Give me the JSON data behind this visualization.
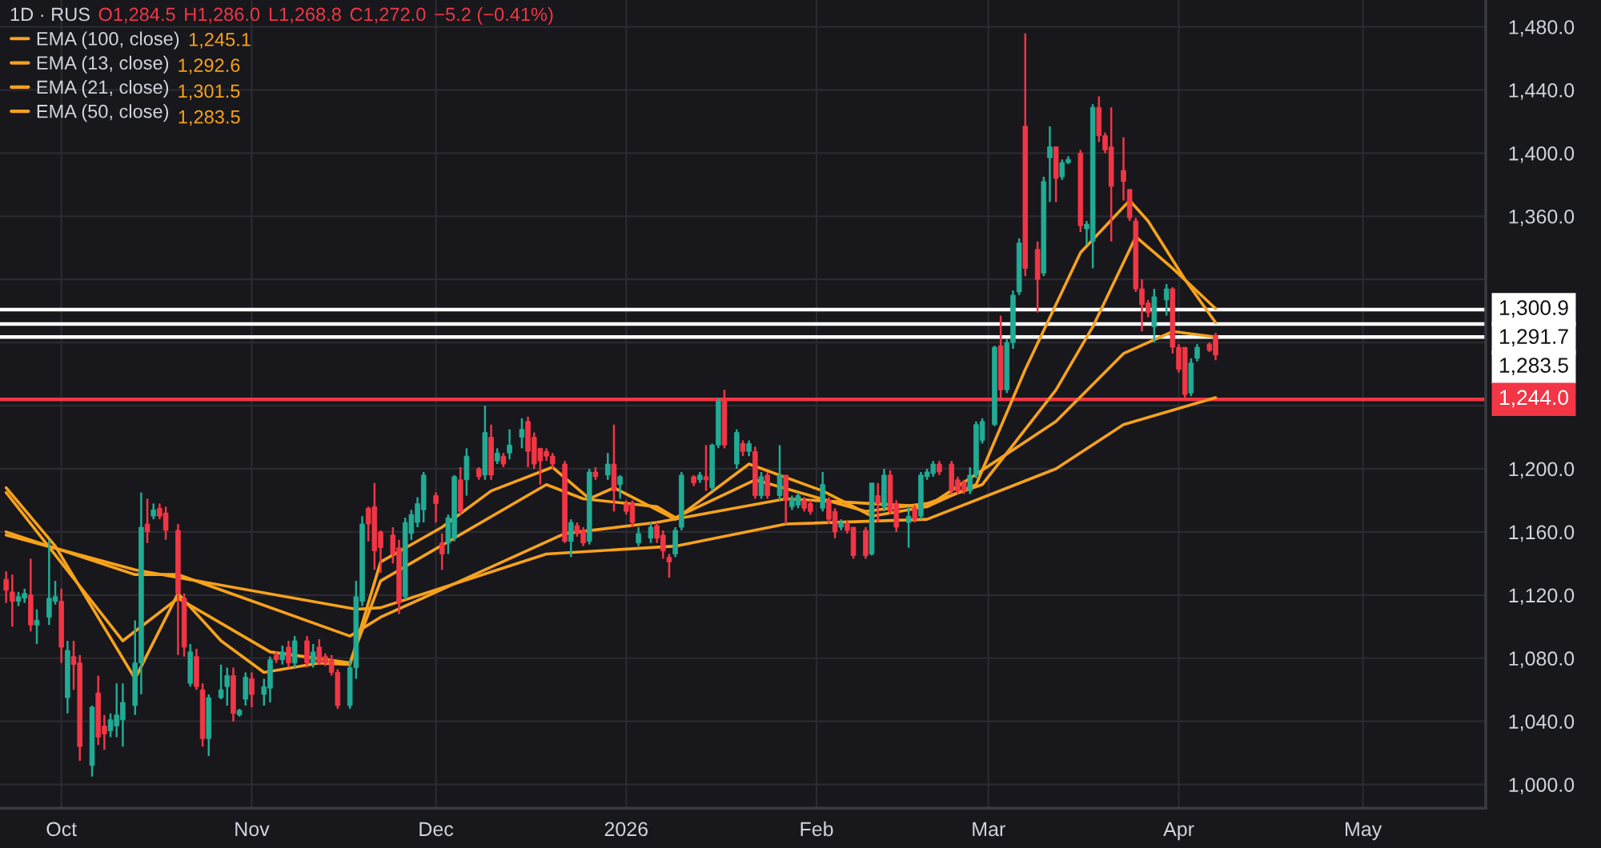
{
  "chart_data": {
    "type": "candlestick",
    "x": [
      "2025-09-22",
      "2025-09-23",
      "2025-09-24",
      "2025-09-25",
      "2025-09-26",
      "2025-09-27",
      "2025-09-29",
      "2025-09-30",
      "2025-10-01",
      "2025-10-02",
      "2025-10-03",
      "2025-10-04",
      "2025-10-06",
      "2025-10-07",
      "2025-10-08",
      "2025-10-09",
      "2025-10-10",
      "2025-10-11",
      "2025-10-13",
      "2025-10-14",
      "2025-10-15",
      "2025-10-16",
      "2025-10-17",
      "2025-10-18",
      "2025-10-20",
      "2025-10-21",
      "2025-10-22",
      "2025-10-23",
      "2025-10-24",
      "2025-10-25",
      "2025-10-27",
      "2025-10-28",
      "2025-10-29",
      "2025-10-30",
      "2025-10-31",
      "2025-11-01",
      "2025-11-03",
      "2025-11-04",
      "2025-11-05",
      "2025-11-06",
      "2025-11-07",
      "2025-11-08",
      "2025-11-10",
      "2025-11-11",
      "2025-11-12",
      "2025-11-13",
      "2025-11-14",
      "2025-11-15",
      "2025-11-17",
      "2025-11-18",
      "2025-11-19",
      "2025-11-20",
      "2025-11-21",
      "2025-11-22",
      "2025-11-24",
      "2025-11-25",
      "2025-11-26",
      "2025-11-27",
      "2025-11-28",
      "2025-11-29",
      "2025-12-01",
      "2025-12-02",
      "2025-12-03",
      "2025-12-04",
      "2025-12-05",
      "2025-12-06",
      "2025-12-08",
      "2025-12-09",
      "2025-12-10",
      "2025-12-11",
      "2025-12-12",
      "2025-12-13",
      "2025-12-15",
      "2025-12-16",
      "2025-12-17",
      "2025-12-18",
      "2025-12-19",
      "2025-12-20",
      "2025-12-22",
      "2025-12-23",
      "2025-12-24",
      "2025-12-25",
      "2025-12-26",
      "2025-12-27",
      "2025-12-29",
      "2025-12-30",
      "2025-12-31",
      "2026-01-01",
      "2026-01-02",
      "2026-01-03",
      "2026-01-05",
      "2026-01-06",
      "2026-01-07",
      "2026-01-08",
      "2026-01-09",
      "2026-01-10",
      "2026-01-12",
      "2026-01-13",
      "2026-01-14",
      "2026-01-15",
      "2026-01-16",
      "2026-01-17",
      "2026-01-19",
      "2026-01-20",
      "2026-01-21",
      "2026-01-22",
      "2026-01-23",
      "2026-01-24",
      "2026-01-26",
      "2026-01-27",
      "2026-01-28",
      "2026-01-29",
      "2026-01-30",
      "2026-01-31",
      "2026-02-02",
      "2026-02-03",
      "2026-02-04",
      "2026-02-05",
      "2026-02-06",
      "2026-02-07",
      "2026-02-09",
      "2026-02-10",
      "2026-02-11",
      "2026-02-12",
      "2026-02-13",
      "2026-02-14",
      "2026-02-16",
      "2026-02-17",
      "2026-02-18",
      "2026-02-19",
      "2026-02-20",
      "2026-02-21",
      "2026-02-23",
      "2026-02-24",
      "2026-02-25",
      "2026-02-26",
      "2026-02-27",
      "2026-02-28",
      "2026-03-02",
      "2026-03-03",
      "2026-03-04",
      "2026-03-05",
      "2026-03-06",
      "2026-03-07",
      "2026-03-09",
      "2026-03-10",
      "2026-03-11",
      "2026-03-12",
      "2026-03-13",
      "2026-03-14",
      "2026-03-16",
      "2026-03-17",
      "2026-03-18",
      "2026-03-19",
      "2026-03-20",
      "2026-03-21",
      "2026-03-23",
      "2026-03-24",
      "2026-03-25",
      "2026-03-26",
      "2026-03-27",
      "2026-03-28",
      "2026-03-30",
      "2026-03-31",
      "2026-04-01",
      "2026-04-02",
      "2026-04-03",
      "2026-04-04",
      "2026-04-06",
      "2026-04-07"
    ],
    "ohlc": [
      [
        1130,
        1135,
        1115,
        1123
      ],
      [
        1122,
        1133,
        1100,
        1116
      ],
      [
        1116,
        1122,
        1113,
        1119
      ],
      [
        1118,
        1124,
        1115,
        1121
      ],
      [
        1120,
        1143,
        1097,
        1101
      ],
      [
        1101,
        1111,
        1089,
        1104
      ],
      [
        1106,
        1155,
        1101,
        1118
      ],
      [
        1116,
        1129,
        1114,
        1119
      ],
      [
        1116,
        1124,
        1077,
        1087
      ],
      [
        1055,
        1091,
        1045,
        1085
      ],
      [
        1081,
        1091,
        1060,
        1076
      ],
      [
        1077,
        1082,
        1015,
        1024
      ],
      [
        1012,
        1050,
        1005,
        1049
      ],
      [
        1058,
        1069,
        1025,
        1030
      ],
      [
        1037,
        1044,
        1022,
        1032
      ],
      [
        1034,
        1045,
        1030,
        1041
      ],
      [
        1037,
        1064,
        1030,
        1044
      ],
      [
        1041,
        1064,
        1024,
        1052
      ],
      [
        1050,
        1104,
        1044,
        1077
      ],
      [
        1077,
        1185,
        1057,
        1163
      ],
      [
        1165,
        1181,
        1153,
        1160
      ],
      [
        1170,
        1178,
        1168,
        1174
      ],
      [
        1175,
        1178,
        1168,
        1170
      ],
      [
        1172,
        1176,
        1155,
        1161
      ],
      [
        1161,
        1165,
        1082,
        1121
      ],
      [
        1118,
        1121,
        1081,
        1087
      ],
      [
        1064,
        1089,
        1062,
        1084
      ],
      [
        1081,
        1086,
        1060,
        1062
      ],
      [
        1060,
        1064,
        1024,
        1029
      ],
      [
        1029,
        1057,
        1018,
        1055
      ],
      [
        1055,
        1076,
        1054,
        1060
      ],
      [
        1062,
        1074,
        1050,
        1069
      ],
      [
        1069,
        1074,
        1040,
        1045
      ],
      [
        1044,
        1048,
        1043,
        1047
      ],
      [
        1054,
        1071,
        1050,
        1068
      ],
      [
        1067,
        1071,
        1049,
        1057
      ],
      [
        1057,
        1067,
        1050,
        1062
      ],
      [
        1061,
        1081,
        1052,
        1079
      ],
      [
        1082,
        1084,
        1077,
        1079
      ],
      [
        1079,
        1088,
        1076,
        1084
      ],
      [
        1087,
        1091,
        1074,
        1077
      ],
      [
        1077,
        1094,
        1074,
        1091
      ],
      [
        1091,
        1094,
        1074,
        1077
      ],
      [
        1077,
        1089,
        1074,
        1084
      ],
      [
        1087,
        1092,
        1076,
        1077
      ],
      [
        1081,
        1083,
        1075,
        1077
      ],
      [
        1079,
        1082,
        1069,
        1071
      ],
      [
        1071,
        1073,
        1048,
        1050
      ],
      [
        1050,
        1079,
        1048,
        1074
      ],
      [
        1074,
        1129,
        1067,
        1119
      ],
      [
        1116,
        1170,
        1113,
        1165
      ],
      [
        1175,
        1176,
        1154,
        1165
      ],
      [
        1176,
        1191,
        1136,
        1148
      ],
      [
        1160,
        1161,
        1134,
        1150
      ],
      [
        1158,
        1163,
        1140,
        1146
      ],
      [
        1150,
        1155,
        1108,
        1115
      ],
      [
        1119,
        1169,
        1117,
        1166
      ],
      [
        1159,
        1174,
        1155,
        1171
      ],
      [
        1166,
        1182,
        1163,
        1178
      ],
      [
        1174,
        1198,
        1166,
        1196
      ],
      [
        1183,
        1185,
        1166,
        1178
      ],
      [
        1153,
        1159,
        1136,
        1146
      ],
      [
        1153,
        1171,
        1146,
        1169
      ],
      [
        1156,
        1196,
        1154,
        1195
      ],
      [
        1193,
        1201,
        1171,
        1173
      ],
      [
        1193,
        1213,
        1183,
        1208
      ],
      [
        1200,
        1201,
        1193,
        1195
      ],
      [
        1196,
        1240,
        1193,
        1223
      ],
      [
        1220,
        1228,
        1193,
        1196
      ],
      [
        1205,
        1213,
        1203,
        1210
      ],
      [
        1208,
        1210,
        1201,
        1203
      ],
      [
        1210,
        1225,
        1206,
        1215
      ],
      [
        1220,
        1232,
        1213,
        1225
      ],
      [
        1230,
        1233,
        1201,
        1211
      ],
      [
        1220,
        1223,
        1200,
        1203
      ],
      [
        1213,
        1213,
        1190,
        1205
      ],
      [
        1211,
        1213,
        1205,
        1208
      ],
      [
        1208,
        1210,
        1200,
        1203
      ],
      [
        1203,
        1205,
        1153,
        1154
      ],
      [
        1154,
        1168,
        1144,
        1166
      ],
      [
        1164,
        1166,
        1157,
        1159
      ],
      [
        1161,
        1163,
        1151,
        1153
      ],
      [
        1154,
        1200,
        1152,
        1198
      ],
      [
        1198,
        1201,
        1193,
        1195
      ],
      [
        1196,
        1210,
        1193,
        1203
      ],
      [
        1203,
        1228,
        1173,
        1186
      ],
      [
        1190,
        1196,
        1181,
        1195
      ],
      [
        1178,
        1180,
        1171,
        1173
      ],
      [
        1178,
        1180,
        1163,
        1166
      ],
      [
        1153,
        1163,
        1151,
        1159
      ],
      [
        1156,
        1166,
        1153,
        1163
      ],
      [
        1164,
        1166,
        1153,
        1156
      ],
      [
        1158,
        1161,
        1143,
        1148
      ],
      [
        1144,
        1146,
        1131,
        1141
      ],
      [
        1146,
        1163,
        1144,
        1161
      ],
      [
        1163,
        1198,
        1161,
        1196
      ],
      [
        1195,
        1196,
        1189,
        1191
      ],
      [
        1193,
        1198,
        1191,
        1196
      ],
      [
        1195,
        1215,
        1186,
        1193
      ],
      [
        1188,
        1216,
        1186,
        1215
      ],
      [
        1215,
        1245,
        1213,
        1243
      ],
      [
        1243,
        1250,
        1213,
        1215
      ],
      [
        1203,
        1225,
        1200,
        1223
      ],
      [
        1216,
        1218,
        1208,
        1211
      ],
      [
        1211,
        1218,
        1208,
        1216
      ],
      [
        1211,
        1214,
        1181,
        1183
      ],
      [
        1183,
        1198,
        1181,
        1195
      ],
      [
        1196,
        1198,
        1181,
        1183
      ],
      [
        1183,
        1215,
        1180,
        1196
      ],
      [
        1196,
        1196,
        1165,
        1180
      ],
      [
        1176,
        1183,
        1174,
        1181
      ],
      [
        1177,
        1185,
        1175,
        1183
      ],
      [
        1180,
        1182,
        1173,
        1175
      ],
      [
        1178,
        1180,
        1171,
        1173
      ],
      [
        1175,
        1198,
        1173,
        1190
      ],
      [
        1180,
        1182,
        1165,
        1168
      ],
      [
        1173,
        1175,
        1156,
        1160
      ],
      [
        1163,
        1168,
        1161,
        1166
      ],
      [
        1165,
        1167,
        1159,
        1161
      ],
      [
        1163,
        1163,
        1143,
        1145
      ],
      [
        1161,
        1163,
        1143,
        1145
      ],
      [
        1146,
        1191,
        1145,
        1191
      ],
      [
        1183,
        1191,
        1166,
        1178
      ],
      [
        1176,
        1200,
        1173,
        1196
      ],
      [
        1196,
        1199,
        1171,
        1173
      ],
      [
        1178,
        1180,
        1160,
        1163
      ],
      [
        1166,
        1176,
        1150,
        1170
      ],
      [
        1175,
        1177,
        1166,
        1168
      ],
      [
        1170,
        1198,
        1168,
        1196
      ],
      [
        1195,
        1200,
        1193,
        1198
      ],
      [
        1197,
        1205,
        1195,
        1203
      ],
      [
        1203,
        1205,
        1196,
        1198
      ],
      [
        1203,
        1205,
        1184,
        1186
      ],
      [
        1193,
        1195,
        1184,
        1186
      ],
      [
        1191,
        1193,
        1184,
        1186
      ],
      [
        1186,
        1201,
        1184,
        1196
      ],
      [
        1196,
        1230,
        1194,
        1228
      ],
      [
        1218,
        1232,
        1216,
        1230
      ],
      [
        1228,
        1278,
        1227,
        1277
      ],
      [
        1278,
        1297,
        1243,
        1250
      ],
      [
        1250,
        1282,
        1248,
        1280
      ],
      [
        1280,
        1313,
        1276,
        1310
      ],
      [
        1312,
        1346,
        1310,
        1343
      ],
      [
        1417,
        1476,
        1322,
        1327
      ],
      [
        1339,
        1344,
        1299,
        1320
      ],
      [
        1324,
        1385,
        1322,
        1382
      ],
      [
        1397,
        1417,
        1369,
        1404
      ],
      [
        1404,
        1404,
        1369,
        1384
      ],
      [
        1385,
        1396,
        1383,
        1394
      ],
      [
        1394,
        1398,
        1393,
        1396
      ],
      [
        1400,
        1402,
        1350,
        1354
      ],
      [
        1352,
        1357,
        1342,
        1355
      ],
      [
        1344,
        1431,
        1327,
        1429
      ],
      [
        1429,
        1436,
        1407,
        1411
      ],
      [
        1411,
        1413,
        1400,
        1402
      ],
      [
        1404,
        1429,
        1344,
        1379
      ],
      [
        1389,
        1410,
        1370,
        1382
      ],
      [
        1377,
        1377,
        1357,
        1359
      ],
      [
        1357,
        1359,
        1312,
        1314
      ],
      [
        1314,
        1320,
        1287,
        1304
      ],
      [
        1305,
        1307,
        1296,
        1299
      ],
      [
        1290,
        1314,
        1280,
        1309
      ],
      [
        1307,
        1317,
        1297,
        1314
      ],
      [
        1314,
        1315,
        1273,
        1277
      ],
      [
        1277,
        1279,
        1261,
        1263
      ],
      [
        1277,
        1277,
        1245,
        1247
      ],
      [
        1248,
        1270,
        1246,
        1267
      ],
      [
        1270,
        1279,
        1268,
        1277
      ],
      [
        1279,
        1280,
        1274,
        1275
      ],
      [
        1284.5,
        1286.0,
        1268.8,
        1272.0
      ]
    ],
    "colors": [
      "#f23645",
      "#f23645",
      "#22ab94",
      "#22ab94",
      "#f23645",
      "#22ab94",
      "#22ab94",
      "#22ab94",
      "#f23645",
      "#22ab94",
      "#f23645",
      "#f23645",
      "#22ab94",
      "#f23645",
      "#f23645",
      "#22ab94",
      "#22ab94",
      "#22ab94",
      "#22ab94",
      "#22ab94",
      "#f23645",
      "#22ab94",
      "#f23645",
      "#f23645",
      "#f23645",
      "#f23645",
      "#22ab94",
      "#f23645",
      "#f23645",
      "#22ab94",
      "#22ab94",
      "#22ab94",
      "#f23645",
      "#22ab94",
      "#22ab94",
      "#f23645",
      "#22ab94",
      "#22ab94",
      "#f23645",
      "#22ab94",
      "#f23645",
      "#22ab94",
      "#f23645",
      "#22ab94",
      "#f23645",
      "#f23645",
      "#f23645",
      "#f23645",
      "#22ab94",
      "#22ab94",
      "#22ab94",
      "#f23645",
      "#f23645",
      "#f23645",
      "#f23645",
      "#f23645",
      "#22ab94",
      "#22ab94",
      "#22ab94",
      "#22ab94",
      "#f23645",
      "#f23645",
      "#22ab94",
      "#22ab94",
      "#f23645",
      "#22ab94",
      "#f23645",
      "#22ab94",
      "#f23645",
      "#22ab94",
      "#f23645",
      "#22ab94",
      "#22ab94",
      "#f23645",
      "#f23645",
      "#f23645",
      "#f23645",
      "#f23645",
      "#f23645",
      "#22ab94",
      "#f23645",
      "#f23645",
      "#22ab94",
      "#f23645",
      "#22ab94",
      "#f23645",
      "#22ab94",
      "#f23645",
      "#f23645",
      "#22ab94",
      "#22ab94",
      "#f23645",
      "#f23645",
      "#f23645",
      "#22ab94",
      "#22ab94",
      "#f23645",
      "#22ab94",
      "#f23645",
      "#22ab94",
      "#22ab94",
      "#f23645",
      "#22ab94",
      "#f23645",
      "#22ab94",
      "#f23645",
      "#22ab94",
      "#f23645",
      "#22ab94",
      "#f23645",
      "#22ab94",
      "#22ab94",
      "#f23645",
      "#f23645",
      "#22ab94",
      "#f23645",
      "#f23645",
      "#22ab94",
      "#f23645",
      "#f23645",
      "#f23645",
      "#22ab94",
      "#f23645",
      "#22ab94",
      "#f23645",
      "#f23645",
      "#22ab94",
      "#f23645",
      "#22ab94",
      "#22ab94",
      "#22ab94",
      "#f23645",
      "#f23645",
      "#f23645",
      "#f23645",
      "#22ab94",
      "#22ab94",
      "#22ab94",
      "#22ab94",
      "#f23645",
      "#22ab94",
      "#22ab94",
      "#22ab94",
      "#f23645",
      "#f23645",
      "#22ab94",
      "#22ab94",
      "#f23645",
      "#22ab94",
      "#22ab94",
      "#f23645",
      "#22ab94",
      "#22ab94",
      "#f23645",
      "#f23645",
      "#f23645",
      "#f23645",
      "#f23645",
      "#f23645",
      "#f23645",
      "#f23645",
      "#22ab94",
      "#22ab94",
      "#f23645",
      "#f23645",
      "#f23645",
      "#22ab94",
      "#22ab94",
      "#f23645",
      "#f23645"
    ],
    "series": [
      {
        "name": "EMA (100, close)",
        "type": "line",
        "color": "#f7a21b",
        "x": [
          "2025-09-22",
          "2025-10-13",
          "2025-11-18",
          "2025-11-22",
          "2025-12-19",
          "2026-01-09",
          "2026-01-27",
          "2026-02-19",
          "2026-03-12",
          "2026-03-23",
          "2026-04-07"
        ],
        "values": [
          1158,
          1136,
          1111,
          1112,
          1146,
          1151,
          1165,
          1168,
          1200,
          1228,
          1245.1
        ]
      },
      {
        "name": "EMA (13, close)",
        "type": "line",
        "color": "#f7a21b",
        "x": [
          "2025-09-22",
          "2025-09-30",
          "2025-10-13",
          "2025-10-20",
          "2025-10-27",
          "2025-11-03",
          "2025-11-12",
          "2025-11-17",
          "2025-11-22",
          "2025-12-02",
          "2025-12-10",
          "2025-12-20",
          "2025-12-26",
          "2025-12-30",
          "2026-01-09",
          "2026-01-21",
          "2026-02-02",
          "2026-02-10",
          "2026-02-19",
          "2026-02-27",
          "2026-03-07",
          "2026-03-16",
          "2026-03-24",
          "2026-03-27",
          "2026-04-02",
          "2026-04-07"
        ],
        "values": [
          1188,
          1151,
          1067,
          1121,
          1091,
          1071,
          1077,
          1076,
          1141,
          1163,
          1186,
          1201,
          1181,
          1188,
          1168,
          1203,
          1186,
          1170,
          1176,
          1190,
          1263,
          1337,
          1370,
          1357,
          1320,
          1292.6
        ]
      },
      {
        "name": "EMA (21, close)",
        "type": "line",
        "color": "#f7a21b",
        "x": [
          "2025-09-22",
          "2025-10-11",
          "2025-10-20",
          "2025-11-04",
          "2025-11-17",
          "2025-11-22",
          "2025-12-19",
          "2025-12-25",
          "2026-01-06",
          "2026-01-09",
          "2026-01-22",
          "2026-02-09",
          "2026-02-19",
          "2026-02-28",
          "2026-03-05",
          "2026-03-12",
          "2026-03-18",
          "2026-03-25",
          "2026-03-31",
          "2026-04-07"
        ],
        "values": [
          1185,
          1091,
          1118,
          1084,
          1077,
          1129,
          1190,
          1181,
          1176,
          1169,
          1193,
          1173,
          1178,
          1190,
          1215,
          1250,
          1290,
          1347,
          1327,
          1301.5
        ]
      },
      {
        "name": "EMA (50, close)",
        "type": "line",
        "color": "#f7a21b",
        "x": [
          "2025-09-22",
          "2025-10-13",
          "2025-10-20",
          "2025-11-17",
          "2025-11-22",
          "2025-12-22",
          "2026-01-06",
          "2026-01-27",
          "2026-02-19",
          "2026-03-12",
          "2026-03-23",
          "2026-03-31",
          "2026-04-07"
        ],
        "values": [
          1160,
          1133,
          1133,
          1094,
          1106,
          1159,
          1166,
          1181,
          1176,
          1230,
          1273,
          1287,
          1283.5
        ]
      }
    ],
    "ref_lines": [
      {
        "axis": "y",
        "value": 1300.9,
        "label": "1,300.9",
        "color": "#ffffff"
      },
      {
        "axis": "y",
        "value": 1291.7,
        "label": "1,291.7",
        "color": "#ffffff"
      },
      {
        "axis": "y",
        "value": 1283.5,
        "label": "1,283.5",
        "color": "#ffffff"
      },
      {
        "axis": "y",
        "value": 1244.0,
        "label": "1,244.0",
        "color": "#f23645"
      }
    ],
    "annotations": [
      "1D · RUS",
      "O1,284.5",
      "H1,286.0",
      "L1,268.8",
      "C1,272.0",
      "−5.2 (−0.41%)",
      "1,245.1",
      "1,292.6",
      "1,301.5",
      "1,283.5"
    ],
    "xlim": [
      "2025-09-21",
      "2026-05-21"
    ],
    "xticks": [
      {
        "value": "2025-10-01",
        "label": "Oct"
      },
      {
        "value": "2025-11-01",
        "label": "Nov"
      },
      {
        "value": "2025-12-01",
        "label": "Dec"
      },
      {
        "value": "2026-01-01",
        "label": "2026"
      },
      {
        "value": "2026-02-01",
        "label": "Feb"
      },
      {
        "value": "2026-03-01",
        "label": "Mar"
      },
      {
        "value": "2026-04-01",
        "label": "Apr"
      },
      {
        "value": "2026-05-01",
        "label": "May"
      }
    ],
    "ylim": [
      985,
      1497
    ],
    "yticks": [
      {
        "value": 1000,
        "label": "1,000.0"
      },
      {
        "value": 1040,
        "label": "1,040.0"
      },
      {
        "value": 1080,
        "label": "1,080.0"
      },
      {
        "value": 1120,
        "label": "1,120.0"
      },
      {
        "value": 1160,
        "label": "1,160.0"
      },
      {
        "value": 1200,
        "label": "1,200.0"
      },
      {
        "value": 1240,
        "label": null
      },
      {
        "value": 1280,
        "label": null
      },
      {
        "value": 1320,
        "label": null
      },
      {
        "value": 1360,
        "label": "1,360.0"
      },
      {
        "value": 1400,
        "label": "1,400.0"
      },
      {
        "value": 1440,
        "label": "1,440.0"
      },
      {
        "value": 1480,
        "label": "1,480.0"
      }
    ],
    "grid": true,
    "legend": "top left"
  }
}
